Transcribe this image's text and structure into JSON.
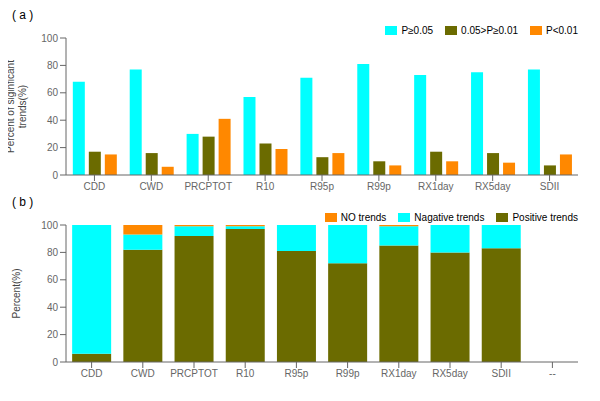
{
  "chart_data": [
    {
      "type": "bar",
      "title": "( a )",
      "ylabel": "Percent of siginficant\ntrends(%)",
      "categories": [
        "CDD",
        "CWD",
        "PRCPTOT",
        "R10",
        "R95p",
        "R99p",
        "RX1day",
        "RX5day",
        "SDII"
      ],
      "series": [
        {
          "name": "P≥0.05",
          "color": "#00FFFF",
          "values": [
            68,
            77,
            30,
            57,
            71,
            81,
            73,
            75,
            77
          ]
        },
        {
          "name": "0.05>P≥0.01",
          "color": "#6B6B00",
          "values": [
            17,
            16,
            28,
            23,
            13,
            10,
            17,
            16,
            7
          ]
        },
        {
          "name": "P<0.01",
          "color": "#FF8800",
          "values": [
            15,
            6,
            41,
            19,
            16,
            7,
            10,
            9,
            15
          ]
        }
      ],
      "ylim": [
        0,
        100
      ],
      "yticks": [
        0,
        20,
        40,
        60,
        80,
        100
      ],
      "grid": false,
      "legend": "upper right"
    },
    {
      "type": "bar",
      "title": "( b )",
      "ylabel": "Percent(%)",
      "categories": [
        "CDD",
        "CWD",
        "PRCPTOT",
        "R10",
        "R95p",
        "R99p",
        "RX1day",
        "RX5day",
        "SDII",
        "--"
      ],
      "series": [
        {
          "name": "Positive trends",
          "color": "#6B6B00",
          "values": [
            6,
            82,
            92,
            97,
            81,
            72,
            85,
            80,
            83,
            0
          ]
        },
        {
          "name": "Nagative trends",
          "color": "#00FFFF",
          "values": [
            94,
            11,
            7,
            2,
            19,
            28,
            14,
            20,
            17,
            0
          ]
        },
        {
          "name": "NO trends",
          "color": "#FF8800",
          "values": [
            0,
            7,
            1,
            1,
            0,
            0,
            1,
            0,
            0,
            0
          ]
        }
      ],
      "ylim": [
        0,
        100
      ],
      "yticks": [
        0,
        20,
        40,
        60,
        80,
        100
      ],
      "grid": false,
      "legend": "upper right",
      "stacked": true
    }
  ]
}
